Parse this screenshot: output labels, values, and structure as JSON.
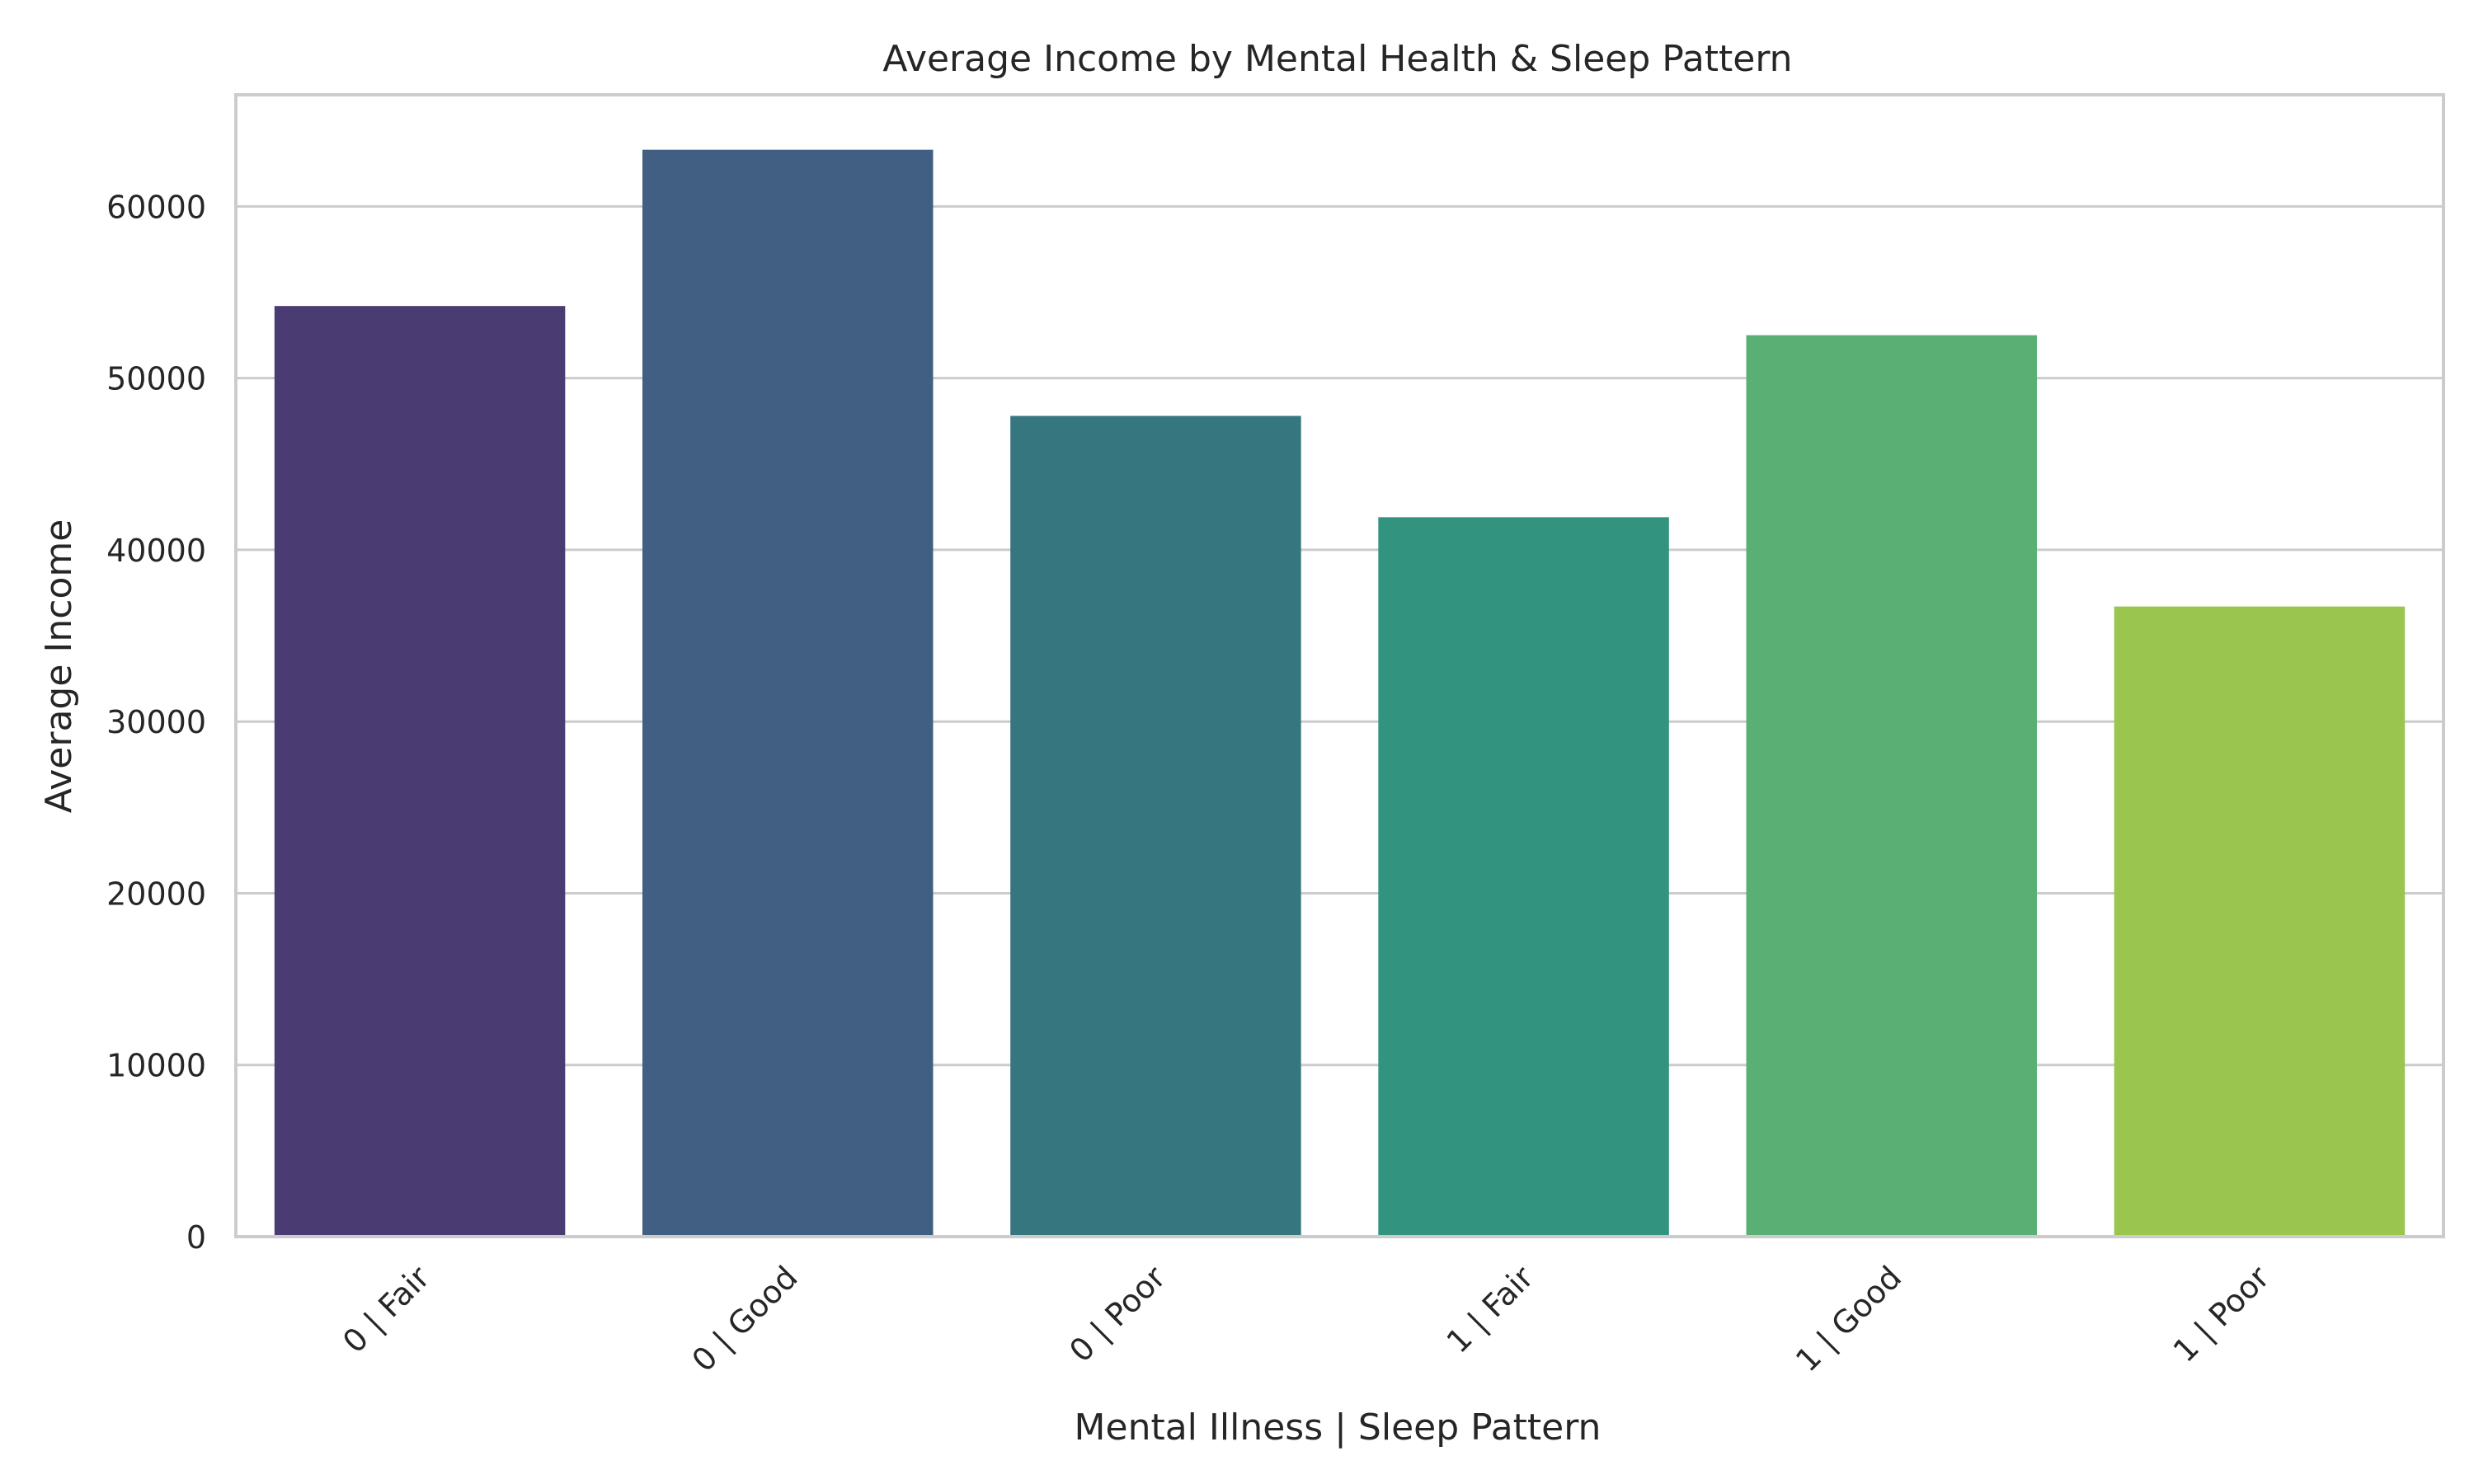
{
  "chart_data": {
    "type": "bar",
    "title": "Average Income by Mental Health & Sleep Pattern",
    "xlabel": "Mental Illness | Sleep Pattern",
    "ylabel": "Average Income",
    "categories": [
      "0 | Fair",
      "0 | Good",
      "0 | Poor",
      "1 | Fair",
      "1 | Good",
      "1 | Poor"
    ],
    "values": [
      54200,
      63300,
      47800,
      41900,
      52500,
      36700
    ],
    "ylim": [
      0,
      66500
    ],
    "yticks": [
      0,
      10000,
      20000,
      30000,
      40000,
      50000,
      60000
    ],
    "ytick_labels": [
      "0",
      "10000",
      "20000",
      "30000",
      "40000",
      "50000",
      "60000"
    ],
    "grid": "y",
    "colors": [
      "#4a3b73",
      "#415f82",
      "#36767f",
      "#32937f",
      "#5ab074",
      "#9ac54e"
    ]
  }
}
